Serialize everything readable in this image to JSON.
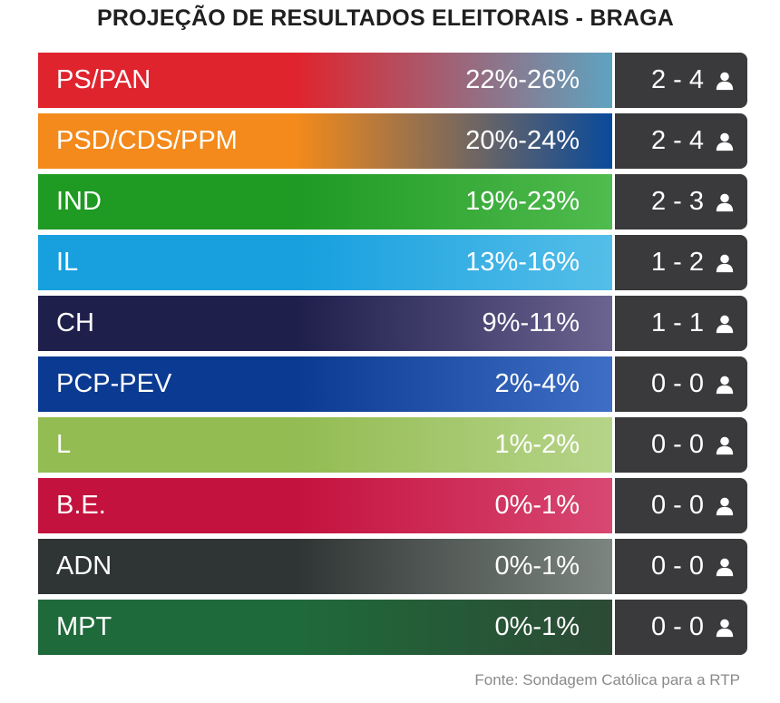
{
  "title": "PROJEÇÃO DE RESULTADOS ELEITORAIS - BRAGA",
  "source": "Fonte: Sondagem Católica para a RTP",
  "chart_data": {
    "type": "table",
    "title": "PROJEÇÃO DE RESULTADOS ELEITORAIS - BRAGA",
    "columns": [
      "party",
      "vote_range",
      "seat_range"
    ],
    "rows": [
      {
        "party": "PS/PAN",
        "pct": "22%-26%",
        "pct_low": 22,
        "pct_high": 26,
        "seats": "2 - 4",
        "seats_low": 2,
        "seats_high": 4,
        "color": "#e0242e",
        "color2": "#5ea3c0"
      },
      {
        "party": "PSD/CDS/PPM",
        "pct": "20%-24%",
        "pct_low": 20,
        "pct_high": 24,
        "seats": "2 - 4",
        "seats_low": 2,
        "seats_high": 4,
        "color": "#f38a1b",
        "color2": "#0a4a9a"
      },
      {
        "party": "IND",
        "pct": "19%-23%",
        "pct_low": 19,
        "pct_high": 23,
        "seats": "2 - 3",
        "seats_low": 2,
        "seats_high": 3,
        "color": "#1f9a23",
        "color2": "#50bb4e"
      },
      {
        "party": "IL",
        "pct": "13%-16%",
        "pct_low": 13,
        "pct_high": 16,
        "seats": "1 - 2",
        "seats_low": 1,
        "seats_high": 2,
        "color": "#179fde",
        "color2": "#55bee9"
      },
      {
        "party": "CH",
        "pct": "9%-11%",
        "pct_low": 9,
        "pct_high": 11,
        "seats": "1 - 1",
        "seats_low": 1,
        "seats_high": 1,
        "color": "#1f1f4c",
        "color2": "#6b6390"
      },
      {
        "party": "PCP-PEV",
        "pct": "2%-4%",
        "pct_low": 2,
        "pct_high": 4,
        "seats": "0 - 0",
        "seats_low": 0,
        "seats_high": 0,
        "color": "#0b3a92",
        "color2": "#3e6ec5"
      },
      {
        "party": "L",
        "pct": "1%-2%",
        "pct_low": 1,
        "pct_high": 2,
        "seats": "0 - 0",
        "seats_low": 0,
        "seats_high": 0,
        "color": "#93bc53",
        "color2": "#b6d489"
      },
      {
        "party": "B.E.",
        "pct": "0%-1%",
        "pct_low": 0,
        "pct_high": 1,
        "seats": "0 - 0",
        "seats_low": 0,
        "seats_high": 0,
        "color": "#c4123e",
        "color2": "#d84872"
      },
      {
        "party": "ADN",
        "pct": "0%-1%",
        "pct_low": 0,
        "pct_high": 1,
        "seats": "0 - 0",
        "seats_low": 0,
        "seats_high": 0,
        "color": "#2f3534",
        "color2": "#7c857f"
      },
      {
        "party": "MPT",
        "pct": "0%-1%",
        "pct_low": 0,
        "pct_high": 1,
        "seats": "0 - 0",
        "seats_low": 0,
        "seats_high": 0,
        "color": "#1f6a3a",
        "color2": "#2c4a35"
      }
    ],
    "seat_icon": "person-icon",
    "seat_cell_color": "#3a3a3c"
  }
}
